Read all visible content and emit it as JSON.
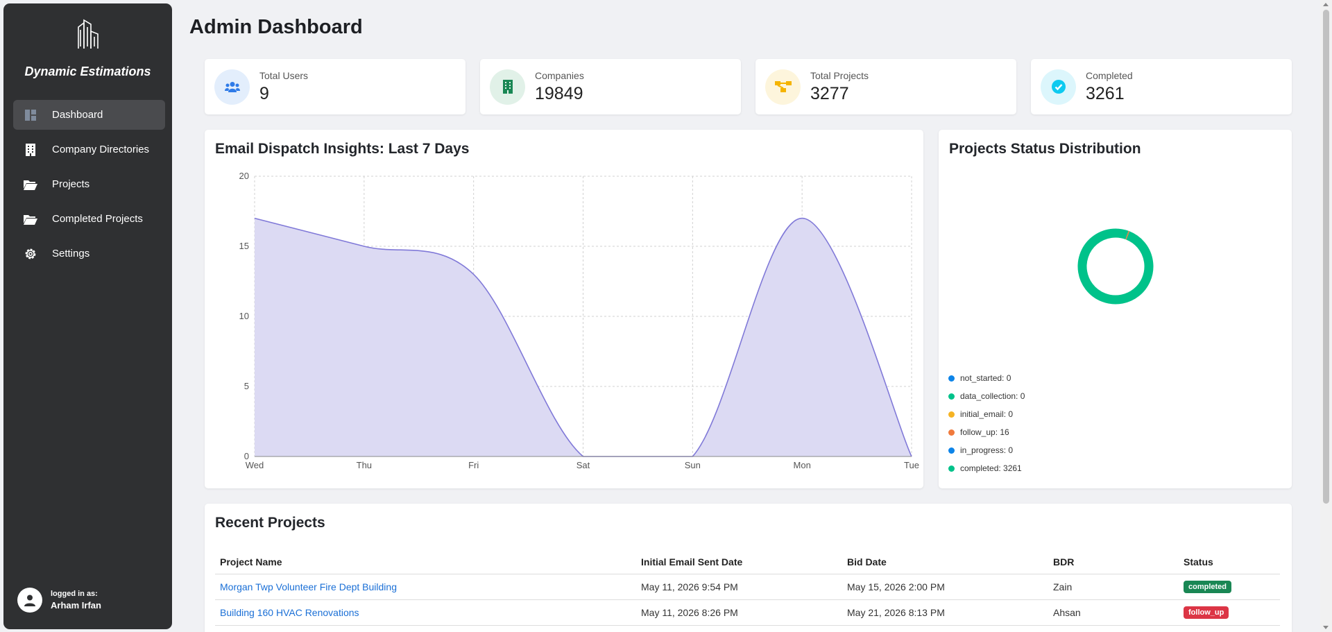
{
  "sidebar": {
    "brand": "Dynamic Estimations",
    "items": [
      {
        "label": "Dashboard",
        "icon": "dashboard-icon"
      },
      {
        "label": "Company Directories",
        "icon": "building-icon"
      },
      {
        "label": "Projects",
        "icon": "folder-open-icon"
      },
      {
        "label": "Completed Projects",
        "icon": "folder-open-icon"
      },
      {
        "label": "Settings",
        "icon": "gear-icon"
      }
    ],
    "user": {
      "caption": "logged in as:",
      "name": "Arham Irfan"
    }
  },
  "header": {
    "title": "Admin Dashboard"
  },
  "stats": [
    {
      "label": "Total Users",
      "value": "9",
      "icon": "users-icon",
      "color": "#2f7be8",
      "bg": "#e3eefc"
    },
    {
      "label": "Companies",
      "value": "19849",
      "icon": "building-icon",
      "color": "#198754",
      "bg": "#e1f1e8"
    },
    {
      "label": "Total Projects",
      "value": "3277",
      "icon": "project-diagram-icon",
      "color": "#f5b400",
      "bg": "#fdf5dc"
    },
    {
      "label": "Completed",
      "value": "3261",
      "icon": "check-circle-icon",
      "color": "#0dcaf0",
      "bg": "#dcf6fc"
    }
  ],
  "email_chart": {
    "title": "Email Dispatch Insights: Last 7 Days"
  },
  "status_chart": {
    "title": "Projects Status Distribution",
    "legend": [
      {
        "label": "not_started: 0",
        "color": "#0d84e8"
      },
      {
        "label": "data_collection: 0",
        "color": "#00c28a"
      },
      {
        "label": "initial_email: 0",
        "color": "#f5b324"
      },
      {
        "label": "follow_up: 16",
        "color": "#f07a3c"
      },
      {
        "label": "in_progress: 0",
        "color": "#0d84e8"
      },
      {
        "label": "completed: 3261",
        "color": "#00c28a"
      }
    ]
  },
  "chart_data": [
    {
      "type": "area",
      "title": "Email Dispatch Insights: Last 7 Days",
      "categories": [
        "Wed",
        "Thu",
        "Fri",
        "Sat",
        "Sun",
        "Mon",
        "Tue"
      ],
      "values": [
        17,
        15,
        13,
        0,
        0,
        17,
        0
      ],
      "ylim": [
        0,
        20
      ],
      "yticks": [
        0,
        5,
        10,
        15,
        20
      ],
      "grid": true,
      "color": "#8079d8",
      "fill": "#dcdaf3"
    },
    {
      "type": "pie",
      "title": "Projects Status Distribution",
      "categories": [
        "not_started",
        "data_collection",
        "initial_email",
        "follow_up",
        "in_progress",
        "completed"
      ],
      "values": [
        0,
        0,
        0,
        16,
        0,
        3261
      ],
      "colors": [
        "#0d84e8",
        "#00c28a",
        "#f5b324",
        "#f07a3c",
        "#0d84e8",
        "#00c28a"
      ],
      "donut": true
    }
  ],
  "recent": {
    "title": "Recent Projects",
    "columns": [
      "Project Name",
      "Initial Email Sent Date",
      "Bid Date",
      "BDR",
      "Status"
    ],
    "rows": [
      {
        "name": "Morgan Twp Volunteer Fire Dept Building",
        "initial": "May 11, 2026 9:54 PM",
        "bid": "May 15, 2026 2:00 PM",
        "bdr": "Zain",
        "status": "completed",
        "status_color": "#198754"
      },
      {
        "name": "Building 160 HVAC Renovations",
        "initial": "May 11, 2026 8:26 PM",
        "bid": "May 21, 2026 8:13 PM",
        "bdr": "Ahsan",
        "status": "follow_up",
        "status_color": "#dc3545"
      }
    ]
  }
}
